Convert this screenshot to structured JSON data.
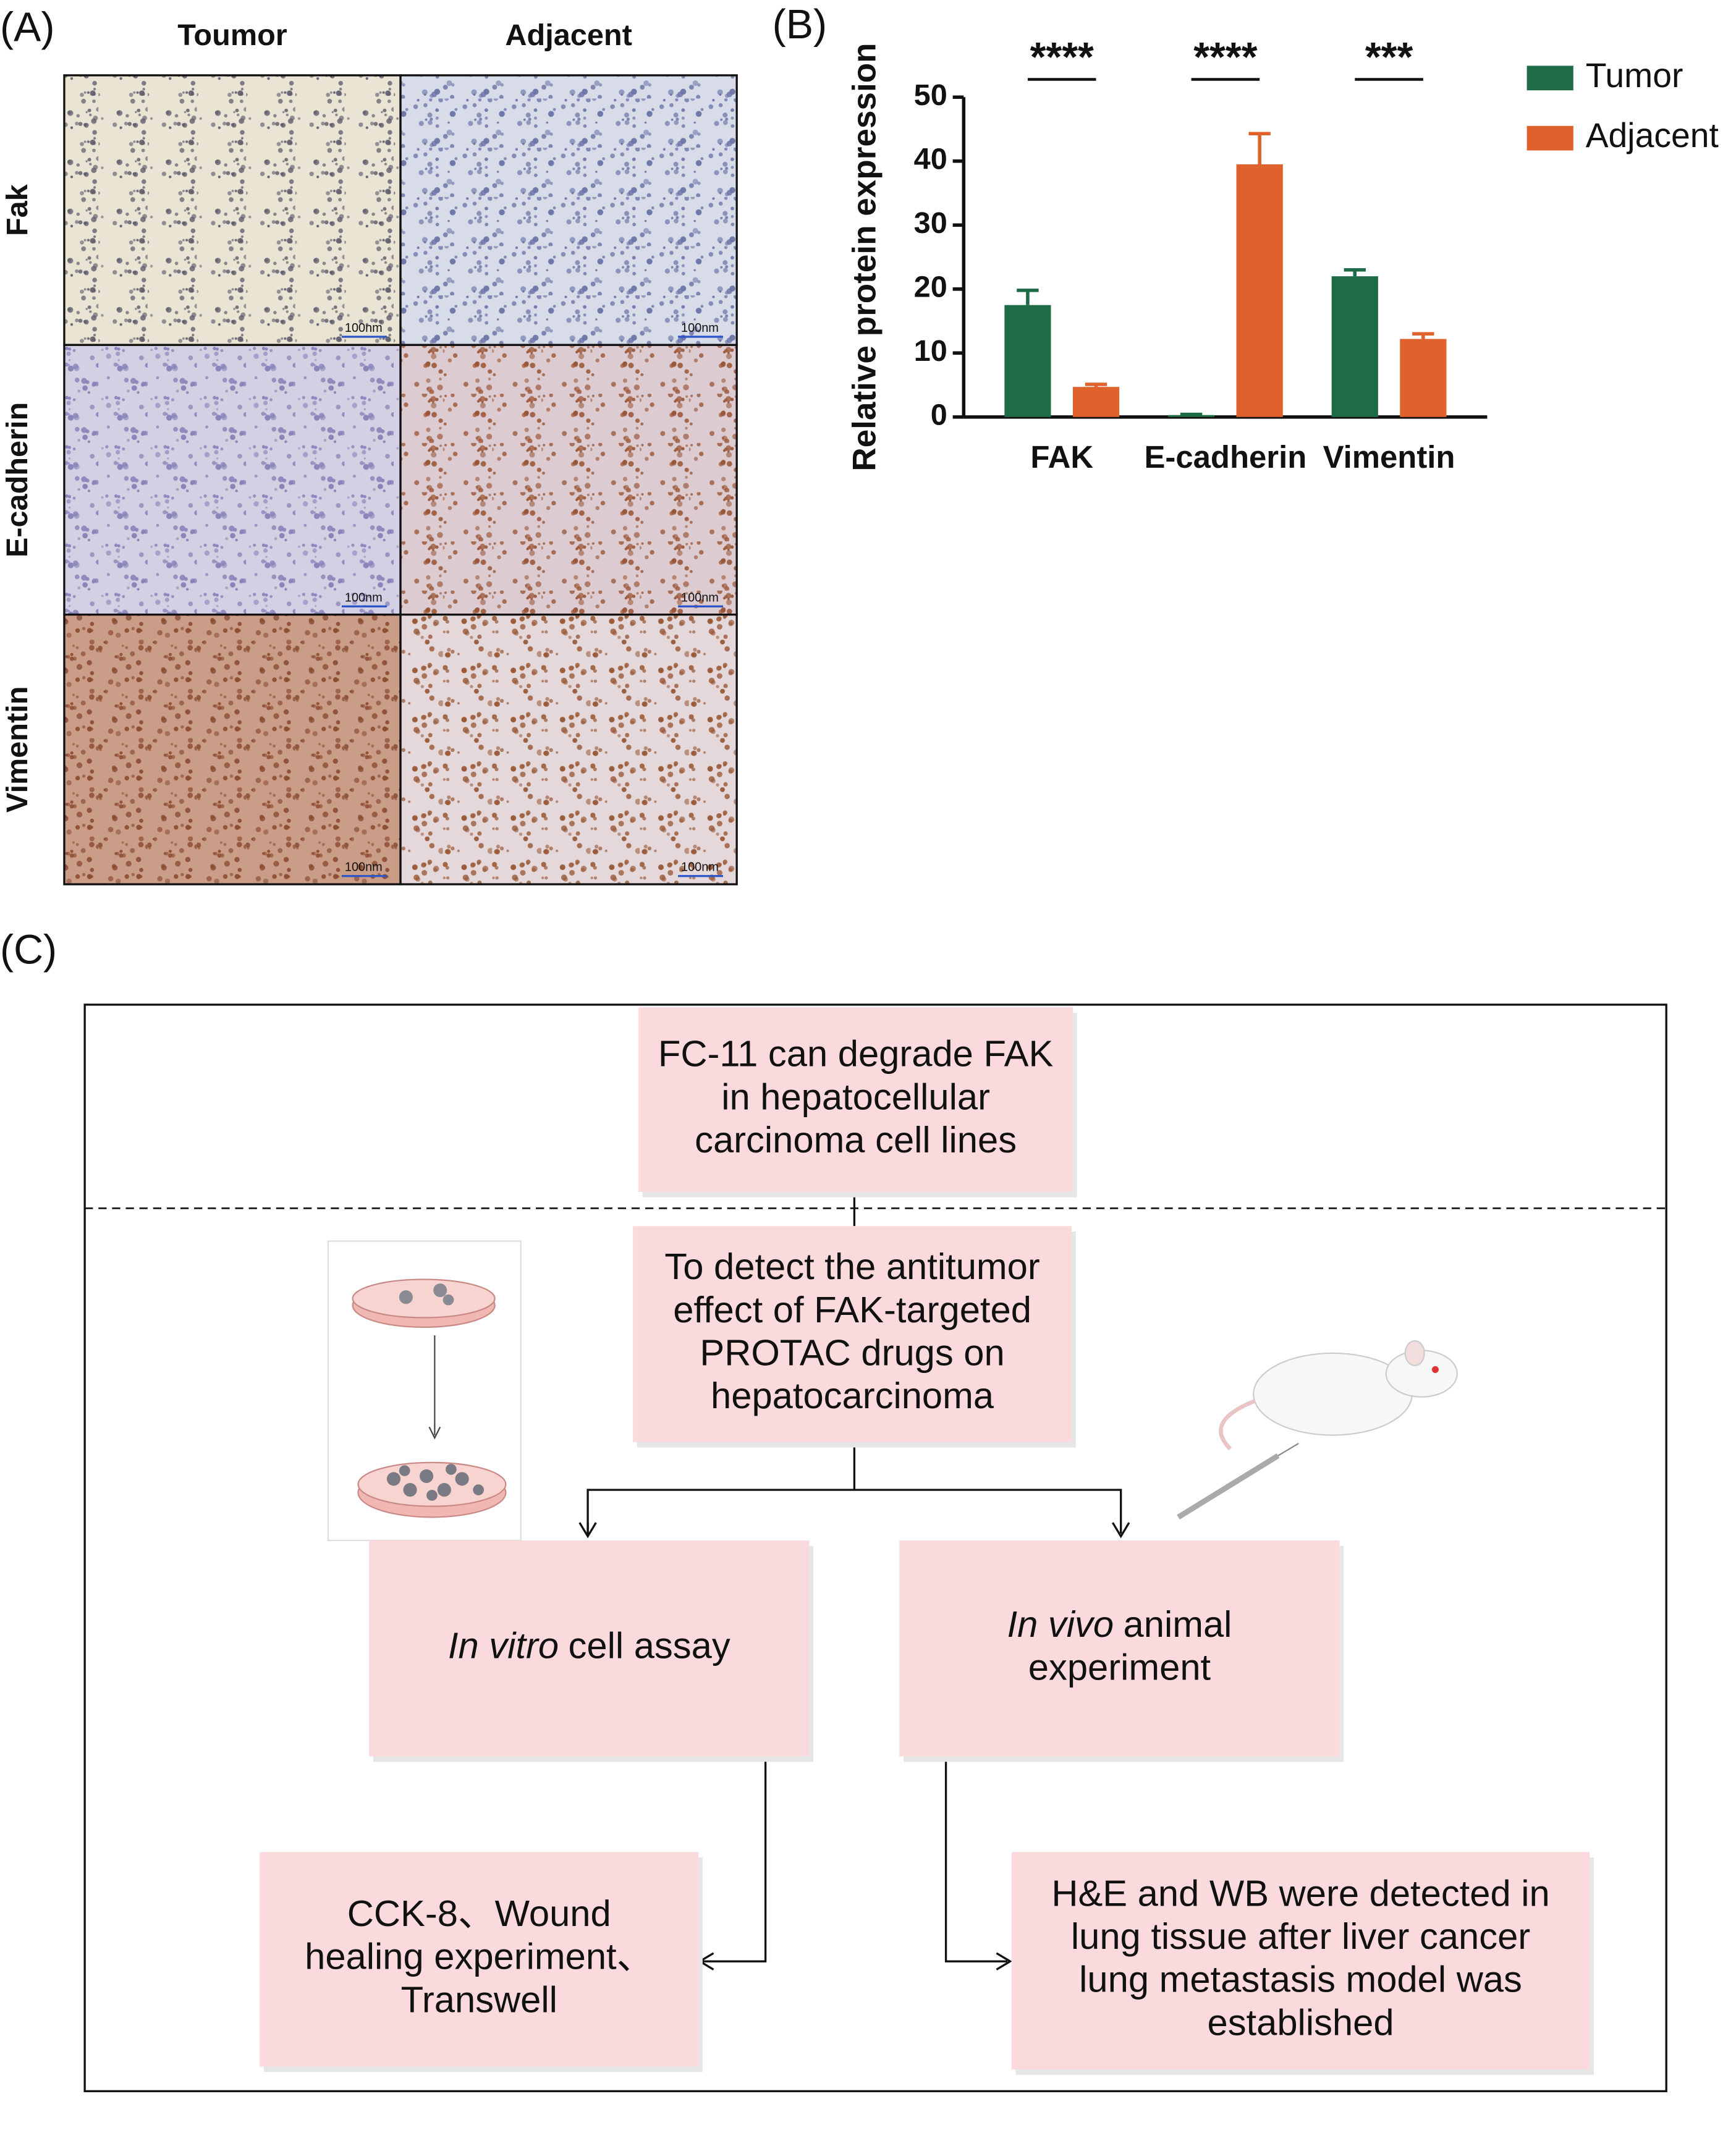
{
  "panel_a": {
    "label": "(A)",
    "columns": [
      "Toumor",
      "Adjacent"
    ],
    "rows": [
      "Fak",
      "E-cadherin",
      "Vimentin"
    ],
    "scale_bar_labels": [
      "100nm",
      "100nm",
      "100nm",
      "100nm",
      "100nm",
      "100nm"
    ]
  },
  "chart_data": {
    "type": "bar",
    "label": "(B)",
    "y_label": "Relative protein expression",
    "categories": [
      "FAK",
      "E-cadherin",
      "Vimentin"
    ],
    "series": [
      {
        "name": "Tumor",
        "color": "#1e6b47",
        "values": [
          17.5,
          0.3,
          22
        ],
        "errors": [
          2.3,
          0.1,
          1
        ]
      },
      {
        "name": "Adjacent",
        "color": "#df612b",
        "values": [
          4.7,
          39.5,
          12.2
        ],
        "errors": [
          0.4,
          4.8,
          0.8
        ]
      }
    ],
    "significance": [
      "****",
      "****",
      "***"
    ],
    "ylim": [
      0,
      50
    ],
    "yticks": [
      0,
      10,
      20,
      30,
      40,
      50
    ],
    "grid": false,
    "legend": "right"
  },
  "panel_c": {
    "label": "(C)",
    "boxes": [
      {
        "lines": [
          "FC-11 can degrade FAK",
          "in hepatocellular",
          "carcinoma cell lines"
        ]
      },
      {
        "lines": [
          "To detect the antitumor",
          "effect of FAK-targeted",
          "PROTAC drugs on",
          "hepatocarcinoma"
        ]
      },
      {
        "lines": [
          {
            "italic": "In vitro",
            "text": "cell assay"
          }
        ]
      },
      {
        "lines": [
          {
            "italic": "In vivo",
            "text": "animal"
          },
          "experiment"
        ]
      },
      {
        "lines": [
          "CCK-8、Wound",
          "healing experiment、",
          "Transwell"
        ]
      },
      {
        "lines": [
          "H&E and WB were detected in",
          "lung tissue after liver cancer",
          "lung metastasis model was",
          "established"
        ]
      }
    ]
  }
}
